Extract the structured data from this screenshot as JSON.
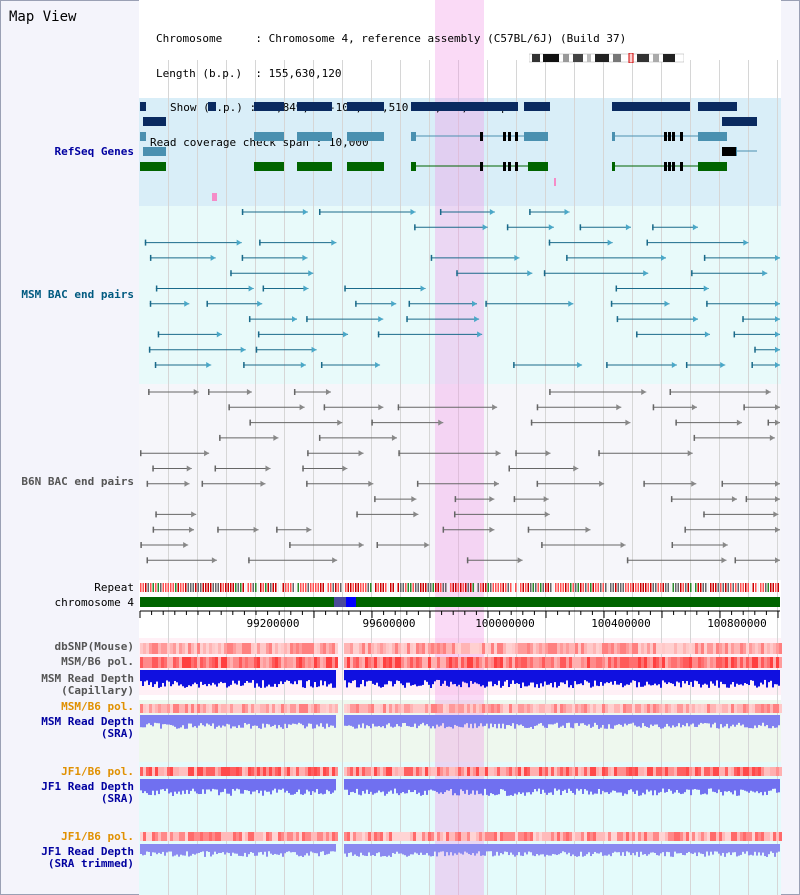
{
  "view_title": "Map View",
  "header": {
    "chromosome_key": "Chromosome",
    "chromosome_value": "Chromosome 4, reference assembly (C57BL/6J) (Build 37)",
    "length_key": "Length (b.p.)",
    "length_value": "155,630,120",
    "show_key": "Show (b.p.)",
    "show_value": "98,849,457-101,014,510 : 2,165,054 bp",
    "coverage_key": "Read coverage check span",
    "coverage_value": "10,000"
  },
  "tracks": {
    "refseq": "RefSeq Genes",
    "msm_bac": "MSM BAC end pairs",
    "b6n_bac": "B6N BAC end pairs",
    "repeat": "Repeat",
    "chromosome": "chromosome 4",
    "dbsnp": "dbSNP(Mouse)",
    "msm_b6_pol": "MSM/B6 pol.",
    "msm_depth_cap_1": "MSM Read Depth",
    "msm_depth_cap_2": "(Capillary)",
    "msm_b6_pol_2": "MSM/B6 pol.",
    "msm_depth_sra_1": "MSM Read Depth",
    "msm_depth_sra_2": "(SRA)",
    "jf1_b6_pol": "JF1/B6 pol.",
    "jf1_depth_sra_1": "JF1 Read Depth",
    "jf1_depth_sra_2": "(SRA)",
    "jf1_b6_pol_2": "JF1/B6 pol.",
    "jf1_depth_trim_1": "JF1 Read Depth",
    "jf1_depth_trim_2": "(SRA trimmed)"
  },
  "axis_ticks": [
    "99200000",
    "99600000",
    "100000000",
    "100400000",
    "100800000"
  ],
  "colors": {
    "refseq_band": "#d9eef8",
    "msm_band": "#e8fafa",
    "b6n_band": "#f6f6fa",
    "label_navy": "#0000a0",
    "label_teal": "#005a80",
    "label_gray": "#555555",
    "label_orange": "#e09000",
    "highlight": "#f296e4",
    "chrom_green": "#006400"
  }
}
